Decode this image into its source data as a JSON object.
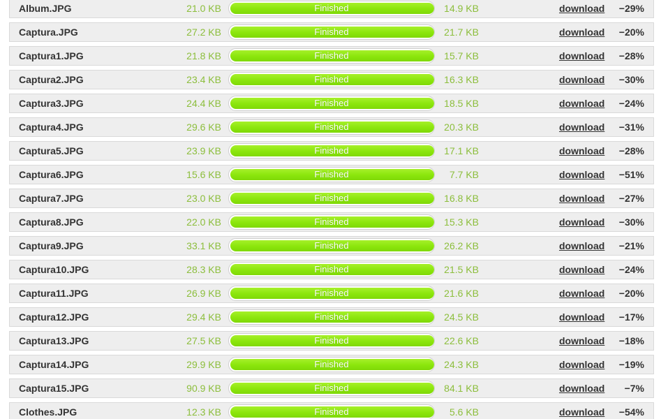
{
  "files": [
    {
      "name": "Album.JPG",
      "original_size": "21.0 KB",
      "status": "Finished",
      "progress": 1.0,
      "new_size": "14.9 KB",
      "download_label": "download",
      "savings": "−29%"
    },
    {
      "name": "Captura.JPG",
      "original_size": "27.2 KB",
      "status": "Finished",
      "progress": 1.0,
      "new_size": "21.7 KB",
      "download_label": "download",
      "savings": "−20%"
    },
    {
      "name": "Captura1.JPG",
      "original_size": "21.8 KB",
      "status": "Finished",
      "progress": 1.0,
      "new_size": "15.7 KB",
      "download_label": "download",
      "savings": "−28%"
    },
    {
      "name": "Captura2.JPG",
      "original_size": "23.4 KB",
      "status": "Finished",
      "progress": 1.0,
      "new_size": "16.3 KB",
      "download_label": "download",
      "savings": "−30%"
    },
    {
      "name": "Captura3.JPG",
      "original_size": "24.4 KB",
      "status": "Finished",
      "progress": 1.0,
      "new_size": "18.5 KB",
      "download_label": "download",
      "savings": "−24%"
    },
    {
      "name": "Captura4.JPG",
      "original_size": "29.6 KB",
      "status": "Finished",
      "progress": 1.0,
      "new_size": "20.3 KB",
      "download_label": "download",
      "savings": "−31%"
    },
    {
      "name": "Captura5.JPG",
      "original_size": "23.9 KB",
      "status": "Finished",
      "progress": 1.0,
      "new_size": "17.1 KB",
      "download_label": "download",
      "savings": "−28%"
    },
    {
      "name": "Captura6.JPG",
      "original_size": "15.6 KB",
      "status": "Finished",
      "progress": 1.0,
      "new_size": "7.7 KB",
      "download_label": "download",
      "savings": "−51%"
    },
    {
      "name": "Captura7.JPG",
      "original_size": "23.0 KB",
      "status": "Finished",
      "progress": 1.0,
      "new_size": "16.8 KB",
      "download_label": "download",
      "savings": "−27%"
    },
    {
      "name": "Captura8.JPG",
      "original_size": "22.0 KB",
      "status": "Finished",
      "progress": 1.0,
      "new_size": "15.3 KB",
      "download_label": "download",
      "savings": "−30%"
    },
    {
      "name": "Captura9.JPG",
      "original_size": "33.1 KB",
      "status": "Finished",
      "progress": 1.0,
      "new_size": "26.2 KB",
      "download_label": "download",
      "savings": "−21%"
    },
    {
      "name": "Captura10.JPG",
      "original_size": "28.3 KB",
      "status": "Finished",
      "progress": 1.0,
      "new_size": "21.5 KB",
      "download_label": "download",
      "savings": "−24%"
    },
    {
      "name": "Captura11.JPG",
      "original_size": "26.9 KB",
      "status": "Finished",
      "progress": 1.0,
      "new_size": "21.6 KB",
      "download_label": "download",
      "savings": "−20%"
    },
    {
      "name": "Captura12.JPG",
      "original_size": "29.4 KB",
      "status": "Finished",
      "progress": 1.0,
      "new_size": "24.5 KB",
      "download_label": "download",
      "savings": "−17%"
    },
    {
      "name": "Captura13.JPG",
      "original_size": "27.5 KB",
      "status": "Finished",
      "progress": 1.0,
      "new_size": "22.6 KB",
      "download_label": "download",
      "savings": "−18%"
    },
    {
      "name": "Captura14.JPG",
      "original_size": "29.9 KB",
      "status": "Finished",
      "progress": 1.0,
      "new_size": "24.3 KB",
      "download_label": "download",
      "savings": "−19%"
    },
    {
      "name": "Captura15.JPG",
      "original_size": "90.9 KB",
      "status": "Finished",
      "progress": 1.0,
      "new_size": "84.1 KB",
      "download_label": "download",
      "savings": "−7%"
    },
    {
      "name": "Clothes.JPG",
      "original_size": "12.3 KB",
      "status": "Finished",
      "progress": 1.0,
      "new_size": "5.6 KB",
      "download_label": "download",
      "savings": "−54%"
    }
  ],
  "colors": {
    "row_background": "#eeeeee",
    "size_text": "#8cbe3c",
    "progress_fill": "#8be60c",
    "text_dark": "#333333"
  }
}
